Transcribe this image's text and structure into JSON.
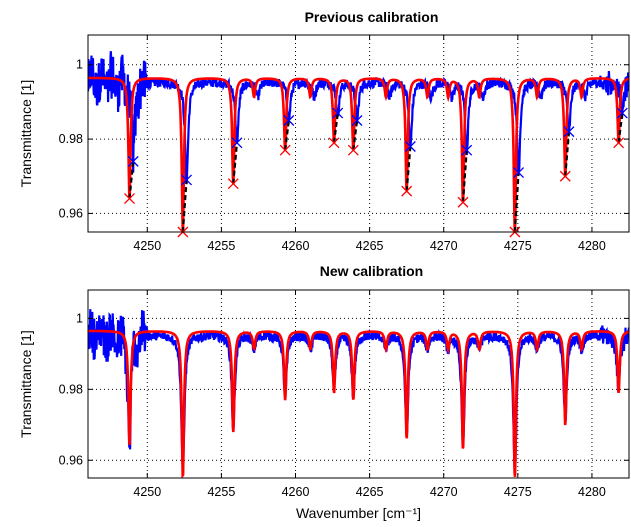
{
  "chart_data": [
    {
      "type": "line",
      "title": "Previous calibration",
      "xlabel": "Wavenumber [cm⁻¹]",
      "ylabel": "Transmittance [1]",
      "xlim": [
        4246,
        4282.5
      ],
      "ylim": [
        0.955,
        1.008
      ],
      "xticks": [
        4250,
        4255,
        4260,
        4265,
        4270,
        4275,
        4280
      ],
      "yticks": [
        0.96,
        0.98,
        1
      ],
      "ytick_labels": [
        "0.96",
        "0.98",
        "1"
      ],
      "grid": true,
      "colors": {
        "measured": "#0000ff",
        "model": "#ff0000",
        "shift": "#000000"
      },
      "lines": [
        {
          "pos": 4248.8,
          "model_min": 0.964,
          "meas_min": 0.974
        },
        {
          "pos": 4252.4,
          "model_min": 0.955,
          "meas_min": 0.969
        },
        {
          "pos": 4255.8,
          "model_min": 0.968,
          "meas_min": 0.979
        },
        {
          "pos": 4259.3,
          "model_min": 0.977,
          "meas_min": 0.985
        },
        {
          "pos": 4262.6,
          "model_min": 0.979,
          "meas_min": 0.987
        },
        {
          "pos": 4263.9,
          "model_min": 0.977,
          "meas_min": 0.985
        },
        {
          "pos": 4267.5,
          "model_min": 0.966,
          "meas_min": 0.978
        },
        {
          "pos": 4271.3,
          "model_min": 0.963,
          "meas_min": 0.977
        },
        {
          "pos": 4274.8,
          "model_min": 0.955,
          "meas_min": 0.971
        },
        {
          "pos": 4278.2,
          "model_min": 0.97,
          "meas_min": 0.982
        },
        {
          "pos": 4281.8,
          "model_min": 0.979,
          "meas_min": 0.987
        }
      ],
      "markers": true
    },
    {
      "type": "line",
      "title": "New calibration",
      "xlabel": "Wavenumber [cm⁻¹]",
      "ylabel": "Transmittance [1]",
      "xlim": [
        4246,
        4282.5
      ],
      "ylim": [
        0.955,
        1.008
      ],
      "xticks": [
        4250,
        4255,
        4260,
        4265,
        4270,
        4275,
        4280
      ],
      "yticks": [
        0.96,
        0.98,
        1
      ],
      "ytick_labels": [
        "0.96",
        "0.98",
        "1"
      ],
      "grid": true,
      "colors": {
        "measured": "#0000ff",
        "model": "#ff0000"
      },
      "lines": [
        {
          "pos": 4248.8,
          "model_min": 0.964,
          "meas_min": 0.965
        },
        {
          "pos": 4252.4,
          "model_min": 0.955,
          "meas_min": 0.957
        },
        {
          "pos": 4255.8,
          "model_min": 0.968,
          "meas_min": 0.969
        },
        {
          "pos": 4259.3,
          "model_min": 0.977,
          "meas_min": 0.978
        },
        {
          "pos": 4262.6,
          "model_min": 0.979,
          "meas_min": 0.98
        },
        {
          "pos": 4263.9,
          "model_min": 0.977,
          "meas_min": 0.978
        },
        {
          "pos": 4267.5,
          "model_min": 0.966,
          "meas_min": 0.967
        },
        {
          "pos": 4271.3,
          "model_min": 0.963,
          "meas_min": 0.964
        },
        {
          "pos": 4274.8,
          "model_min": 0.955,
          "meas_min": 0.956
        },
        {
          "pos": 4278.2,
          "model_min": 0.97,
          "meas_min": 0.971
        },
        {
          "pos": 4281.8,
          "model_min": 0.979,
          "meas_min": 0.98
        }
      ],
      "markers": false
    }
  ]
}
